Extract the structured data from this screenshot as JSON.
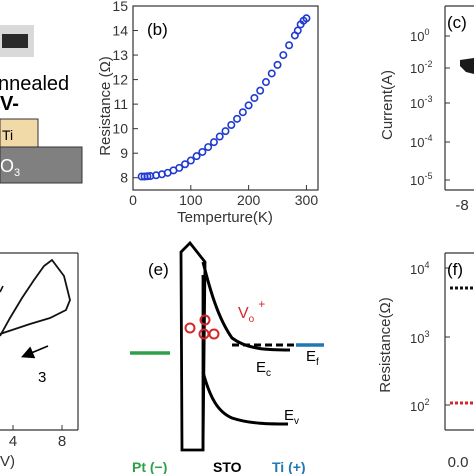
{
  "panel_a": {
    "annealed_text": "nnealed",
    "v_text": "V-",
    "ti_label": "Ti",
    "o3_label": "O",
    "o3_sub": "3"
  },
  "panel_b": {
    "letter": "(b)",
    "ylabel": "Resistance (Ω)",
    "xlabel": "Temperture(K)",
    "xticks": [
      "0",
      "100",
      "200",
      "300"
    ],
    "yticks": [
      "8",
      "9",
      "10",
      "11",
      "12",
      "13",
      "14",
      "15"
    ]
  },
  "panel_c": {
    "letter": "(c)",
    "ylabel": "Current(A)",
    "ytick_bases": [
      "10",
      "10",
      "10",
      "10",
      "10"
    ],
    "ytick_exps": [
      "0",
      "-2",
      "-3",
      "-4",
      "-5"
    ],
    "xtick": "-8"
  },
  "panel_d": {
    "loop_label": "3",
    "xticks": [
      "4",
      "8"
    ],
    "xlabel_fragment": "V)"
  },
  "panel_e": {
    "letter": "(e)",
    "vo_label": "V",
    "vo_sub": "o",
    "vo_sup": "+",
    "ec_label": "E",
    "ec_sub": "c",
    "ef_label": "E",
    "ef_sub": "f",
    "ev_label": "E",
    "ev_sub": "v",
    "pt_label": "Pt (−)",
    "sto_label": "STO",
    "ti_label": "Ti (+)"
  },
  "panel_f": {
    "letter": "(f)",
    "ylabel": "Resistance(Ω)",
    "ytick_bases": [
      "10",
      "10",
      "10"
    ],
    "ytick_exps": [
      "4",
      "3",
      "2"
    ],
    "xtick": "0.0"
  },
  "chart_data": [
    {
      "panel": "b",
      "type": "scatter",
      "xlabel": "Temperture(K)",
      "ylabel": "Resistance (Ω)",
      "xlim": [
        0,
        320
      ],
      "ylim": [
        7.5,
        15
      ],
      "x": [
        15,
        20,
        25,
        30,
        40,
        50,
        60,
        70,
        80,
        90,
        100,
        110,
        120,
        130,
        140,
        150,
        160,
        170,
        180,
        190,
        200,
        210,
        220,
        230,
        240,
        250,
        260,
        270,
        280,
        285,
        290,
        295,
        300
      ],
      "y": [
        8.05,
        8.05,
        8.06,
        8.07,
        8.1,
        8.14,
        8.2,
        8.3,
        8.4,
        8.55,
        8.7,
        8.88,
        9.05,
        9.25,
        9.45,
        9.68,
        9.9,
        10.15,
        10.4,
        10.67,
        10.95,
        11.25,
        11.55,
        11.9,
        12.25,
        12.6,
        13.0,
        13.4,
        13.8,
        14.0,
        14.25,
        14.4,
        14.5
      ]
    }
  ]
}
